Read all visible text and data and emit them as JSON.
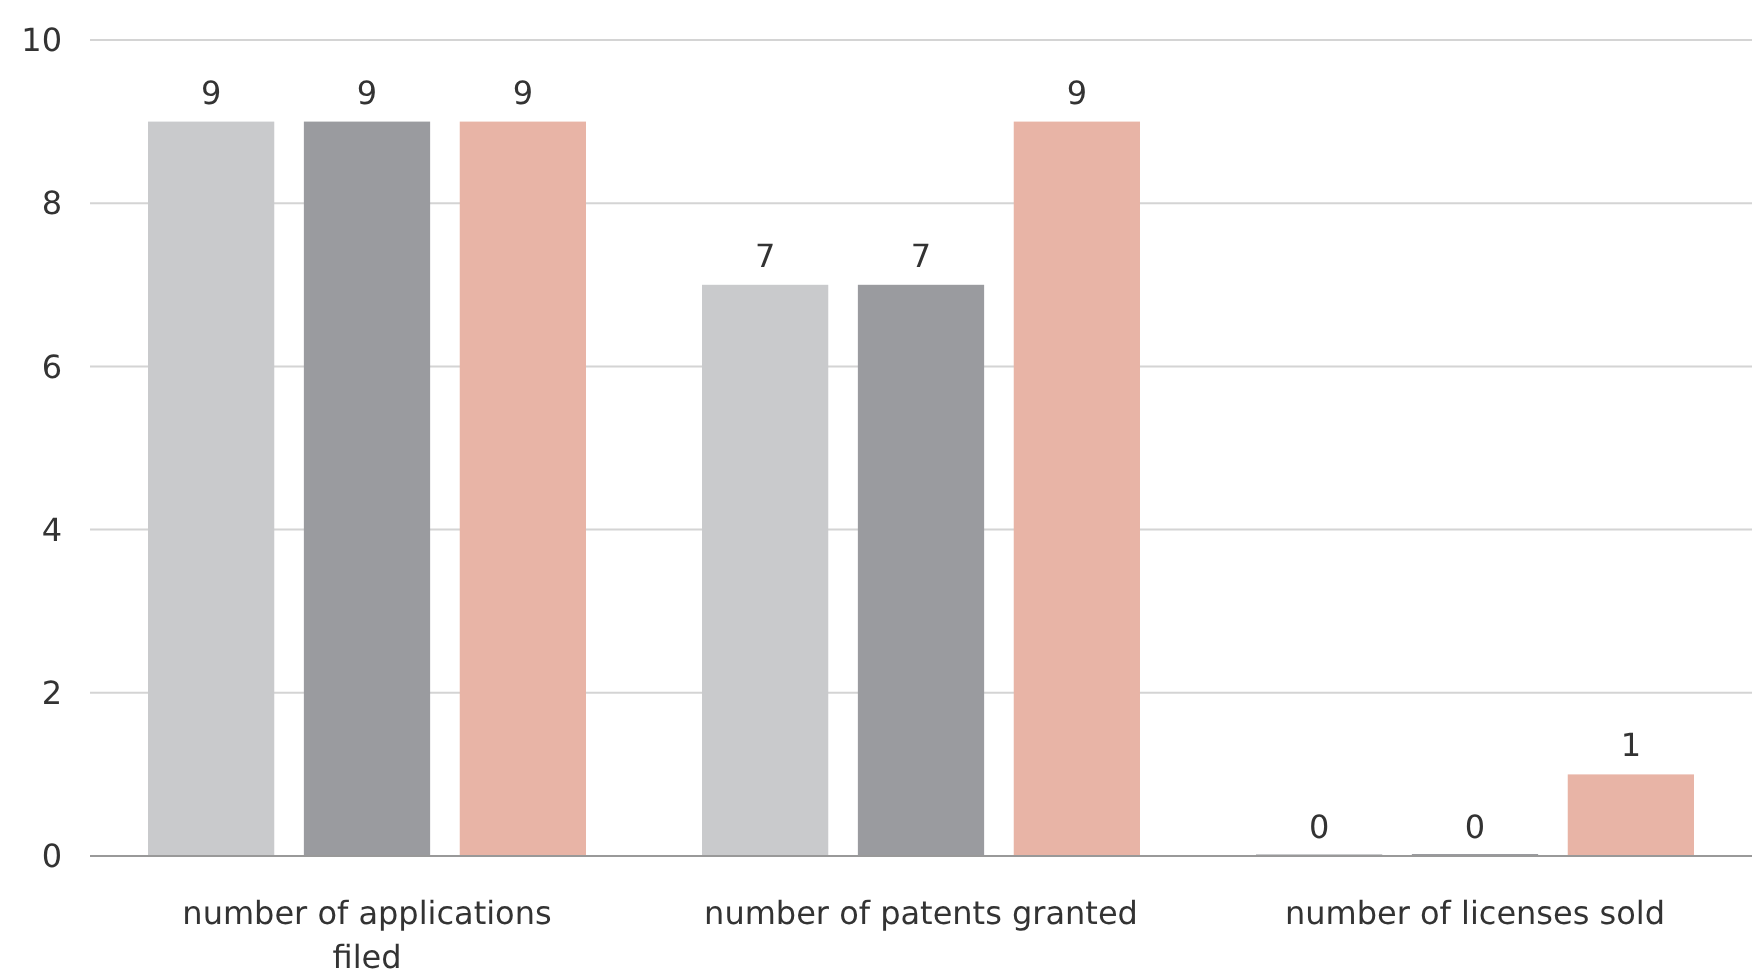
{
  "chart_data": {
    "type": "bar",
    "categories": [
      "number of applications filed",
      "number of patents granted",
      "number of licenses sold"
    ],
    "series": [
      {
        "color": "#c9cacc",
        "values": [
          9,
          7,
          0
        ]
      },
      {
        "color": "#9a9b9f",
        "values": [
          9,
          7,
          0
        ]
      },
      {
        "color": "#e8b4a6",
        "values": [
          9,
          9,
          1
        ]
      }
    ],
    "ylim": [
      0,
      10
    ],
    "yticks": [
      0,
      2,
      4,
      6,
      8,
      10
    ],
    "grid": "y",
    "data_labels": true
  }
}
